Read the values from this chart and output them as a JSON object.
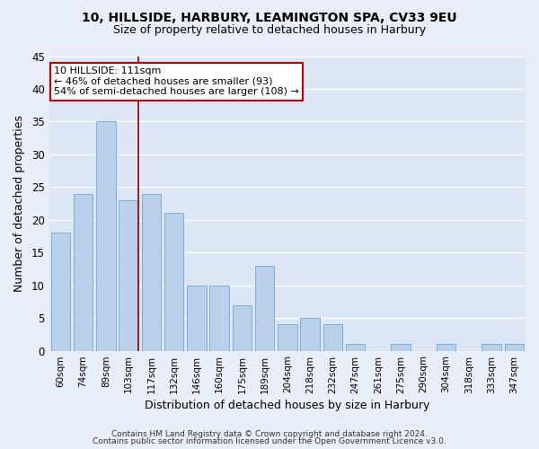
{
  "title1": "10, HILLSIDE, HARBURY, LEAMINGTON SPA, CV33 9EU",
  "title2": "Size of property relative to detached houses in Harbury",
  "xlabel": "Distribution of detached houses by size in Harbury",
  "ylabel": "Number of detached properties",
  "categories": [
    "60sqm",
    "74sqm",
    "89sqm",
    "103sqm",
    "117sqm",
    "132sqm",
    "146sqm",
    "160sqm",
    "175sqm",
    "189sqm",
    "204sqm",
    "218sqm",
    "232sqm",
    "247sqm",
    "261sqm",
    "275sqm",
    "290sqm",
    "304sqm",
    "318sqm",
    "333sqm",
    "347sqm"
  ],
  "values": [
    18,
    24,
    35,
    23,
    24,
    21,
    10,
    10,
    7,
    13,
    4,
    5,
    4,
    1,
    0,
    1,
    0,
    1,
    0,
    1,
    1
  ],
  "bar_color": "#b8d0ea",
  "bar_edge_color": "#7aafd4",
  "vline_color": "#8b0000",
  "vline_x": 3.45,
  "ylim": [
    0,
    45
  ],
  "yticks": [
    0,
    5,
    10,
    15,
    20,
    25,
    30,
    35,
    40,
    45
  ],
  "background_color": "#dce6f5",
  "fig_background_color": "#e8eef8",
  "grid_color": "#ffffff",
  "annotation_line1": "10 HILLSIDE: 111sqm",
  "annotation_line2": "← 46% of detached houses are smaller (93)",
  "annotation_line3": "54% of semi-detached houses are larger (108) →",
  "annotation_box_color": "#ffffff",
  "annotation_box_edge": "#cc0000",
  "footer1": "Contains HM Land Registry data © Crown copyright and database right 2024.",
  "footer2": "Contains public sector information licensed under the Open Government Licence v3.0."
}
